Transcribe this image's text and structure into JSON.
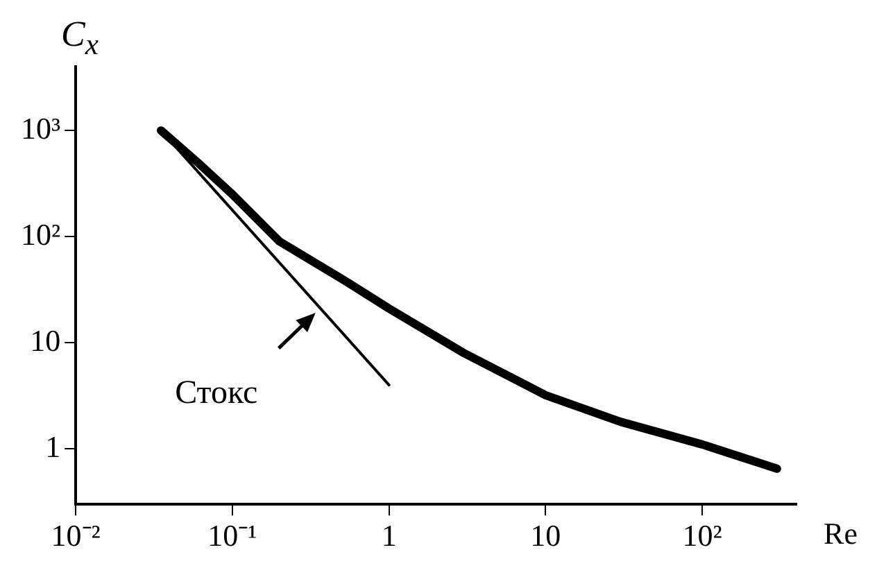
{
  "chart_data": {
    "type": "line",
    "xlabel": "Re",
    "ylabel": "C$_{x}$",
    "log": "xy",
    "grid": false,
    "legend": false,
    "marker": "none",
    "line_style": "solid",
    "xlim": [
      0.01,
      400
    ],
    "ylim": [
      0.3,
      4000
    ],
    "xticks": [
      {
        "value": 0.01,
        "label": "10⁻²"
      },
      {
        "value": 0.1,
        "label": "10⁻¹"
      },
      1,
      10,
      {
        "value": 100,
        "label": "10²"
      }
    ],
    "yticks": [
      1,
      10,
      {
        "value": 100,
        "label": "10²"
      },
      {
        "value": 1000,
        "label": "10³"
      }
    ],
    "series": [
      {
        "color": "#000000",
        "x": [
          0.035,
          0.06,
          0.1,
          0.2,
          0.5,
          1,
          3,
          10,
          30,
          100,
          300
        ],
        "values": [
          1000,
          500,
          250,
          90,
          40,
          21,
          8,
          3.2,
          1.8,
          1.1,
          0.65
        ]
      },
      {
        "color": "#000000",
        "x": [
          0.035,
          1
        ],
        "values": [
          1000,
          4
        ]
      }
    ],
    "annotations": [
      {
        "text": "Стокс",
        "x": 0.35,
        "y": 20
      }
    ]
  }
}
